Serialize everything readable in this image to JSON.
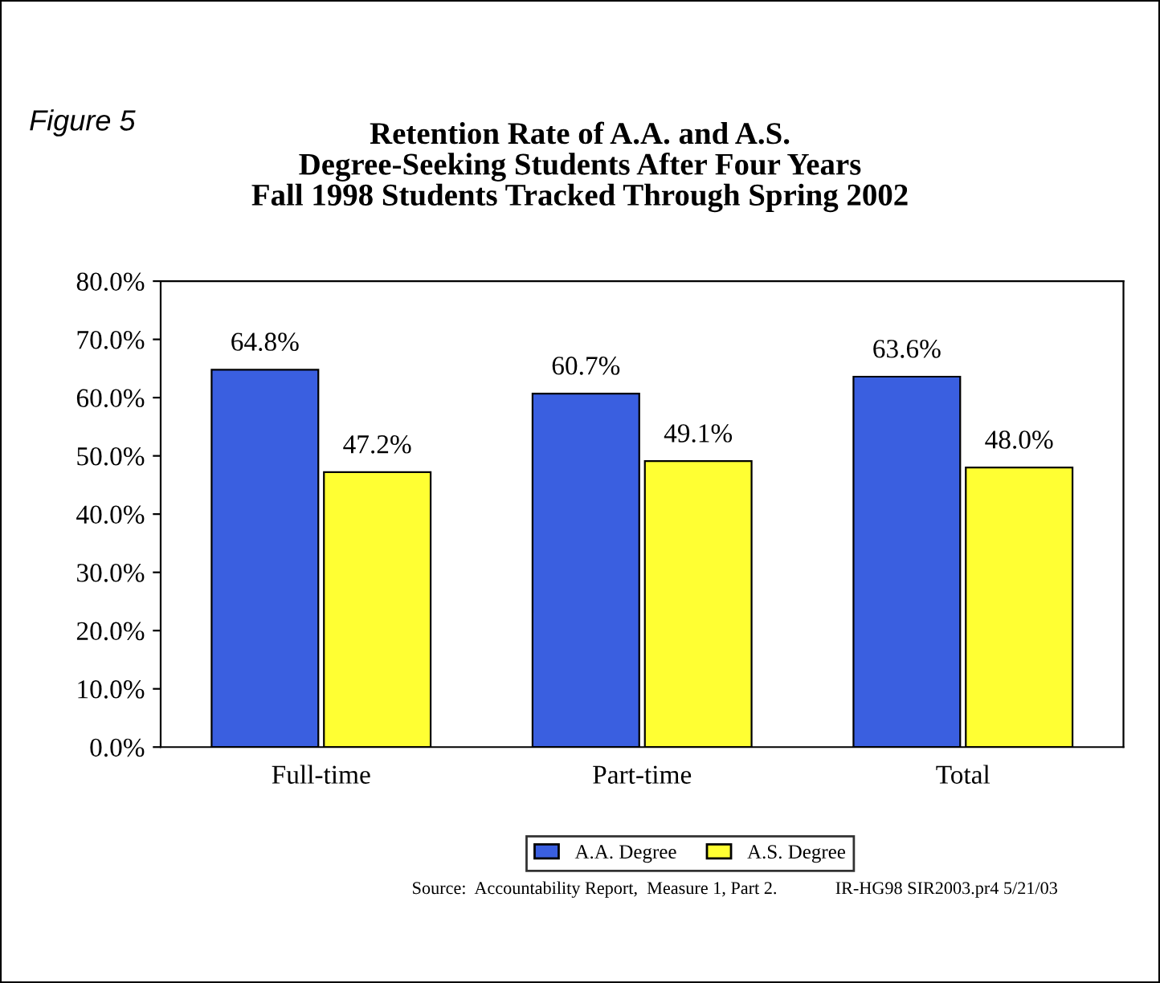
{
  "chart_data": {
    "type": "bar",
    "title": "Retention Rate of A.A. and A.S.\nDegree-Seeking Students After Four Years\nFall 1998 Students Tracked Through Spring 2002",
    "categories": [
      "Full-time",
      "Part-time",
      "Total"
    ],
    "series": [
      {
        "name": "A.A. Degree",
        "color": "#3a5fe0",
        "values": [
          64.8,
          60.7,
          63.6
        ],
        "value_labels": [
          "64.8%",
          "60.7%",
          "63.6%"
        ]
      },
      {
        "name": "A.S. Degree",
        "color": "#ffff33",
        "values": [
          47.2,
          49.1,
          48.0
        ],
        "value_labels": [
          "47.2%",
          "49.1%",
          "48.0%"
        ]
      }
    ],
    "ylim": [
      0,
      80
    ],
    "yticks": [
      {
        "value": 0,
        "label": "0.0%"
      },
      {
        "value": 10,
        "label": "10.0%"
      },
      {
        "value": 20,
        "label": "20.0%"
      },
      {
        "value": 30,
        "label": "30.0%"
      },
      {
        "value": 40,
        "label": "40.0%"
      },
      {
        "value": 50,
        "label": "50.0%"
      },
      {
        "value": 60,
        "label": "60.0%"
      },
      {
        "value": 70,
        "label": "70.0%"
      },
      {
        "value": 80,
        "label": "80.0%"
      }
    ],
    "grid": false,
    "legend": "bottom",
    "annotations": [
      "Figure 5",
      "Source:  Accountability Report,  Measure 1, Part 2.",
      "IR-HG98 SIR2003.pr4 5/21/03"
    ]
  }
}
